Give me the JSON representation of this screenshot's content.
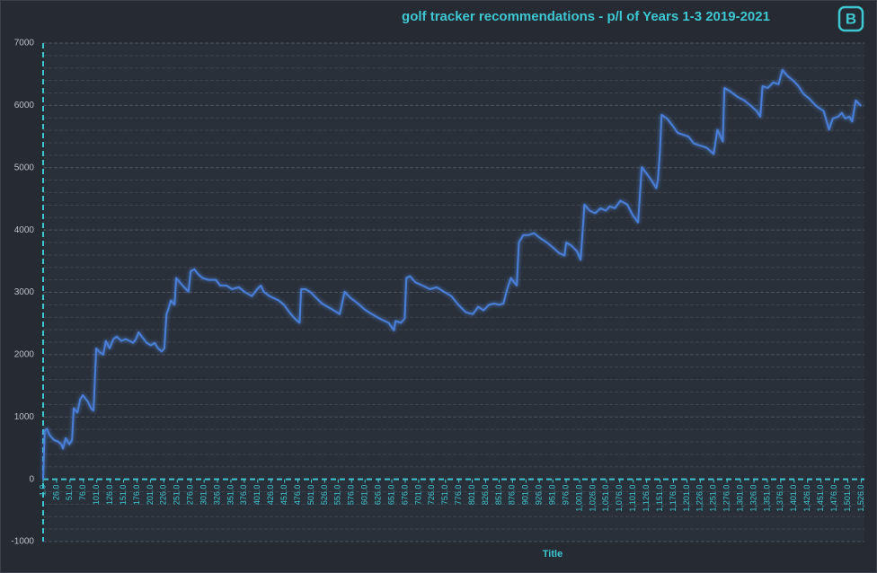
{
  "chart_data": {
    "type": "line",
    "title": "golf tracker recommendations - p/l of Years 1-3 2019-2021",
    "x_label": "Title",
    "x": [
      1,
      4,
      8,
      13,
      21,
      28,
      35,
      38,
      43,
      50,
      55,
      58,
      65,
      70,
      75,
      85,
      90,
      95,
      100,
      105,
      113,
      118,
      125,
      132,
      138,
      147,
      155,
      169,
      174,
      179,
      185,
      194,
      202,
      209,
      215,
      222,
      227,
      231,
      234,
      239,
      246,
      249,
      256,
      264,
      272,
      276,
      283,
      289,
      298,
      309,
      323,
      331,
      343,
      353,
      366,
      376,
      390,
      400,
      407,
      412,
      423,
      440,
      450,
      460,
      470,
      479,
      482,
      490,
      500,
      510,
      521,
      531,
      541,
      554,
      563,
      574,
      588,
      601,
      614,
      628,
      645,
      655,
      658,
      668,
      675,
      678,
      685,
      695,
      708,
      722,
      735,
      748,
      762,
      775,
      789,
      802,
      812,
      822,
      832,
      842,
      851,
      859,
      866,
      873,
      879,
      884,
      888,
      896,
      906,
      916,
      926,
      940,
      950,
      963,
      973,
      976,
      986,
      996,
      1003,
      1007,
      1010,
      1020,
      1030,
      1040,
      1050,
      1057,
      1067,
      1077,
      1090,
      1100,
      1110,
      1117,
      1124,
      1134,
      1144,
      1147,
      1151,
      1154,
      1164,
      1174,
      1184,
      1194,
      1204,
      1214,
      1224,
      1238,
      1251,
      1258,
      1268,
      1271,
      1281,
      1295,
      1308,
      1321,
      1331,
      1338,
      1342,
      1352,
      1362,
      1372,
      1379,
      1389,
      1399,
      1409,
      1419,
      1429,
      1442,
      1456,
      1466,
      1473,
      1483,
      1490,
      1496,
      1504,
      1509,
      1516,
      1526
    ],
    "series": [
      {
        "color": "#4a7fd8",
        "values": [
          0,
          780,
          810,
          710,
          630,
          610,
          560,
          490,
          660,
          560,
          630,
          1140,
          1070,
          1280,
          1350,
          1240,
          1140,
          1100,
          2100,
          2050,
          2000,
          2220,
          2100,
          2250,
          2290,
          2220,
          2250,
          2190,
          2250,
          2360,
          2290,
          2190,
          2150,
          2190,
          2100,
          2050,
          2100,
          2650,
          2720,
          2870,
          2800,
          3230,
          3160,
          3080,
          3010,
          3340,
          3370,
          3300,
          3230,
          3200,
          3200,
          3110,
          3110,
          3050,
          3080,
          3010,
          2940,
          3050,
          3110,
          3010,
          2940,
          2870,
          2800,
          2680,
          2580,
          2510,
          3050,
          3050,
          3000,
          2910,
          2820,
          2770,
          2720,
          2650,
          3010,
          2910,
          2820,
          2720,
          2650,
          2580,
          2510,
          2390,
          2540,
          2510,
          2580,
          3230,
          3260,
          3160,
          3110,
          3050,
          3080,
          3010,
          2940,
          2800,
          2680,
          2650,
          2770,
          2710,
          2800,
          2820,
          2800,
          2820,
          3050,
          3230,
          3160,
          3110,
          3800,
          3920,
          3920,
          3950,
          3880,
          3800,
          3730,
          3630,
          3590,
          3800,
          3750,
          3660,
          3520,
          4020,
          4410,
          4310,
          4270,
          4350,
          4310,
          4380,
          4350,
          4470,
          4410,
          4240,
          4120,
          5010,
          4930,
          4810,
          4670,
          4810,
          5270,
          5850,
          5790,
          5680,
          5560,
          5530,
          5500,
          5390,
          5360,
          5320,
          5220,
          5610,
          5420,
          6280,
          6230,
          6140,
          6080,
          5990,
          5910,
          5820,
          6310,
          6280,
          6370,
          6340,
          6570,
          6470,
          6400,
          6310,
          6180,
          6110,
          5990,
          5910,
          5610,
          5790,
          5820,
          5880,
          5790,
          5820,
          5740,
          6080,
          5990
        ]
      }
    ],
    "xlim": [
      1,
      1532
    ],
    "ylim": [
      -1000,
      7000
    ],
    "yticks": [
      -1000,
      0,
      1000,
      2000,
      3000,
      4000,
      5000,
      6000,
      7000
    ],
    "grid_yticks": [
      -800,
      -600,
      -400,
      -200,
      200,
      400,
      600,
      800,
      1200,
      1400,
      1600,
      1800,
      2200,
      2400,
      2600,
      2800,
      3200,
      3400,
      3600,
      3800,
      4200,
      4400,
      4600,
      4800,
      5200,
      5400,
      5600,
      5800,
      6200,
      6400,
      6600,
      6800
    ],
    "xticks": [
      {
        "value": 1,
        "label": "1.0"
      },
      {
        "value": 26,
        "label": "26.0"
      },
      {
        "value": 51,
        "label": "51.0"
      },
      {
        "value": 76,
        "label": "76.0"
      },
      {
        "value": 101,
        "label": "101.0"
      },
      {
        "value": 126,
        "label": "126.0"
      },
      {
        "value": 151,
        "label": "151.0"
      },
      {
        "value": 176,
        "label": "176.0"
      },
      {
        "value": 201,
        "label": "201.0"
      },
      {
        "value": 226,
        "label": "226.0"
      },
      {
        "value": 251,
        "label": "251.0"
      },
      {
        "value": 276,
        "label": "276.0"
      },
      {
        "value": 301,
        "label": "301.0"
      },
      {
        "value": 326,
        "label": "326.0"
      },
      {
        "value": 351,
        "label": "351.0"
      },
      {
        "value": 376,
        "label": "376.0"
      },
      {
        "value": 401,
        "label": "401.0"
      },
      {
        "value": 426,
        "label": "426.0"
      },
      {
        "value": 451,
        "label": "451.0"
      },
      {
        "value": 476,
        "label": "476.0"
      },
      {
        "value": 501,
        "label": "501.0"
      },
      {
        "value": 526,
        "label": "526.0"
      },
      {
        "value": 551,
        "label": "551.0"
      },
      {
        "value": 576,
        "label": "576.0"
      },
      {
        "value": 601,
        "label": "601.0"
      },
      {
        "value": 626,
        "label": "626.0"
      },
      {
        "value": 651,
        "label": "651.0"
      },
      {
        "value": 676,
        "label": "676.0"
      },
      {
        "value": 701,
        "label": "701.0"
      },
      {
        "value": 726,
        "label": "726.0"
      },
      {
        "value": 751,
        "label": "751.0"
      },
      {
        "value": 776,
        "label": "776.0"
      },
      {
        "value": 801,
        "label": "801.0"
      },
      {
        "value": 826,
        "label": "826.0"
      },
      {
        "value": 851,
        "label": "851.0"
      },
      {
        "value": 876,
        "label": "876.0"
      },
      {
        "value": 901,
        "label": "901.0"
      },
      {
        "value": 926,
        "label": "926.0"
      },
      {
        "value": 951,
        "label": "951.0"
      },
      {
        "value": 976,
        "label": "976.0"
      },
      {
        "value": 1001,
        "label": "1,001.0"
      },
      {
        "value": 1026,
        "label": "1,026.0"
      },
      {
        "value": 1051,
        "label": "1,051.0"
      },
      {
        "value": 1076,
        "label": "1,076.0"
      },
      {
        "value": 1101,
        "label": "1,101.0"
      },
      {
        "value": 1126,
        "label": "1,126.0"
      },
      {
        "value": 1151,
        "label": "1,151.0"
      },
      {
        "value": 1176,
        "label": "1,176.0"
      },
      {
        "value": 1201,
        "label": "1,201.0"
      },
      {
        "value": 1226,
        "label": "1,226.0"
      },
      {
        "value": 1251,
        "label": "1,251.0"
      },
      {
        "value": 1276,
        "label": "1,276.0"
      },
      {
        "value": 1301,
        "label": "1,301.0"
      },
      {
        "value": 1326,
        "label": "1,326.0"
      },
      {
        "value": 1351,
        "label": "1,351.0"
      },
      {
        "value": 1376,
        "label": "1,376.0"
      },
      {
        "value": 1401,
        "label": "1,401.0"
      },
      {
        "value": 1426,
        "label": "1,426.0"
      },
      {
        "value": 1451,
        "label": "1,451.0"
      },
      {
        "value": 1476,
        "label": "1,476.0"
      },
      {
        "value": 1501,
        "label": "1,501.0"
      },
      {
        "value": 1526,
        "label": "1,526.0"
      }
    ],
    "grid": true
  }
}
